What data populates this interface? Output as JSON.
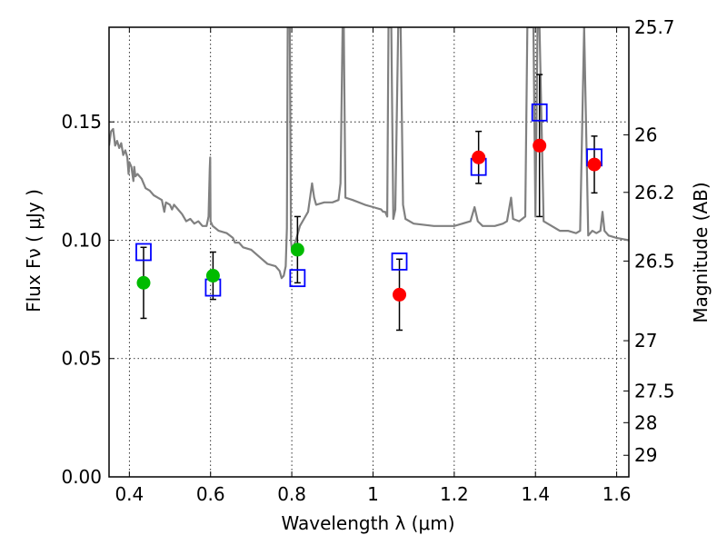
{
  "chart_data": {
    "type": "scatter",
    "title": "",
    "xlabel": "Wavelength  λ (μm)",
    "ylabel": "Flux  Fν  ( μJy )",
    "y2label": "Magnitude (AB)",
    "xlim": [
      0.35,
      1.63
    ],
    "ylim": [
      0.0,
      0.19
    ],
    "grid": true,
    "x_ticks": [
      {
        "value": 0.4,
        "label": "0.4"
      },
      {
        "value": 0.6,
        "label": "0.6"
      },
      {
        "value": 0.8,
        "label": "0.8"
      },
      {
        "value": 1.0,
        "label": "1"
      },
      {
        "value": 1.2,
        "label": "1.2"
      },
      {
        "value": 1.4,
        "label": "1.4"
      },
      {
        "value": 1.6,
        "label": "1.6"
      }
    ],
    "y_ticks": [
      {
        "value": 0.0,
        "label": "0.00"
      },
      {
        "value": 0.05,
        "label": "0.05"
      },
      {
        "value": 0.1,
        "label": "0.10"
      },
      {
        "value": 0.15,
        "label": "0.15"
      }
    ],
    "y2_ticks": [
      {
        "value": 25.7,
        "label": "25.7"
      },
      {
        "value": 26.0,
        "label": "26"
      },
      {
        "value": 26.2,
        "label": "26.2"
      },
      {
        "value": 26.5,
        "label": "26.5"
      },
      {
        "value": 27.0,
        "label": "27"
      },
      {
        "value": 27.5,
        "label": "27.5"
      },
      {
        "value": 28.0,
        "label": "28"
      },
      {
        "value": 29.0,
        "label": "29"
      }
    ],
    "series": [
      {
        "kind": "observed_optical",
        "color": "#00bb00",
        "marker": "circle",
        "points": [
          {
            "x": 0.435,
            "y": 0.082,
            "yerr": 0.015
          },
          {
            "x": 0.606,
            "y": 0.085,
            "yerr": 0.01
          },
          {
            "x": 0.814,
            "y": 0.096,
            "yerr": 0.014
          }
        ]
      },
      {
        "kind": "observed_nir",
        "color": "#ff0000",
        "marker": "circle",
        "points": [
          {
            "x": 1.065,
            "y": 0.077,
            "yerr": 0.015
          },
          {
            "x": 1.26,
            "y": 0.135,
            "yerr": 0.011
          },
          {
            "x": 1.41,
            "y": 0.14,
            "yerr": 0.03
          },
          {
            "x": 1.545,
            "y": 0.132,
            "yerr": 0.012
          }
        ]
      },
      {
        "kind": "model_photometry",
        "color": "#0000ff",
        "marker": "open-square",
        "points": [
          {
            "x": 0.435,
            "y": 0.095
          },
          {
            "x": 0.606,
            "y": 0.08
          },
          {
            "x": 0.814,
            "y": 0.084
          },
          {
            "x": 1.065,
            "y": 0.091
          },
          {
            "x": 1.26,
            "y": 0.131
          },
          {
            "x": 1.41,
            "y": 0.154
          },
          {
            "x": 1.545,
            "y": 0.135
          }
        ]
      },
      {
        "kind": "model_sed",
        "color": "#808080",
        "marker": "line",
        "points": [
          [
            0.35,
            0.14
          ],
          [
            0.355,
            0.146
          ],
          [
            0.36,
            0.147
          ],
          [
            0.365,
            0.14
          ],
          [
            0.37,
            0.142
          ],
          [
            0.375,
            0.139
          ],
          [
            0.38,
            0.141
          ],
          [
            0.385,
            0.136
          ],
          [
            0.39,
            0.138
          ],
          [
            0.395,
            0.135
          ],
          [
            0.398,
            0.128
          ],
          [
            0.4,
            0.133
          ],
          [
            0.405,
            0.131
          ],
          [
            0.41,
            0.125
          ],
          [
            0.412,
            0.131
          ],
          [
            0.415,
            0.127
          ],
          [
            0.42,
            0.128
          ],
          [
            0.425,
            0.127
          ],
          [
            0.43,
            0.126
          ],
          [
            0.435,
            0.124
          ],
          [
            0.44,
            0.122
          ],
          [
            0.45,
            0.121
          ],
          [
            0.46,
            0.119
          ],
          [
            0.47,
            0.118
          ],
          [
            0.48,
            0.117
          ],
          [
            0.486,
            0.112
          ],
          [
            0.49,
            0.116
          ],
          [
            0.5,
            0.115
          ],
          [
            0.505,
            0.113
          ],
          [
            0.51,
            0.115
          ],
          [
            0.52,
            0.113
          ],
          [
            0.53,
            0.111
          ],
          [
            0.54,
            0.108
          ],
          [
            0.55,
            0.109
          ],
          [
            0.56,
            0.107
          ],
          [
            0.57,
            0.108
          ],
          [
            0.58,
            0.106
          ],
          [
            0.59,
            0.106
          ],
          [
            0.595,
            0.11
          ],
          [
            0.598,
            0.13
          ],
          [
            0.599,
            0.135
          ],
          [
            0.6,
            0.108
          ],
          [
            0.605,
            0.106
          ],
          [
            0.62,
            0.104
          ],
          [
            0.64,
            0.103
          ],
          [
            0.655,
            0.101
          ],
          [
            0.66,
            0.099
          ],
          [
            0.67,
            0.099
          ],
          [
            0.68,
            0.097
          ],
          [
            0.7,
            0.096
          ],
          [
            0.72,
            0.093
          ],
          [
            0.74,
            0.09
          ],
          [
            0.76,
            0.089
          ],
          [
            0.77,
            0.087
          ],
          [
            0.775,
            0.084
          ],
          [
            0.78,
            0.085
          ],
          [
            0.785,
            0.089
          ],
          [
            0.788,
            0.105
          ],
          [
            0.79,
            0.19
          ],
          [
            0.795,
            0.19
          ],
          [
            0.798,
            0.1
          ],
          [
            0.8,
            0.096
          ],
          [
            0.81,
            0.1
          ],
          [
            0.82,
            0.106
          ],
          [
            0.83,
            0.109
          ],
          [
            0.84,
            0.112
          ],
          [
            0.845,
            0.118
          ],
          [
            0.85,
            0.124
          ],
          [
            0.855,
            0.118
          ],
          [
            0.86,
            0.115
          ],
          [
            0.88,
            0.116
          ],
          [
            0.9,
            0.116
          ],
          [
            0.915,
            0.117
          ],
          [
            0.92,
            0.124
          ],
          [
            0.925,
            0.19
          ],
          [
            0.928,
            0.19
          ],
          [
            0.932,
            0.118
          ],
          [
            0.95,
            0.117
          ],
          [
            0.98,
            0.115
          ],
          [
            1.0,
            0.114
          ],
          [
            1.02,
            0.113
          ],
          [
            1.025,
            0.112
          ],
          [
            1.03,
            0.112
          ],
          [
            1.035,
            0.11
          ],
          [
            1.038,
            0.19
          ],
          [
            1.045,
            0.19
          ],
          [
            1.05,
            0.109
          ],
          [
            1.055,
            0.113
          ],
          [
            1.062,
            0.19
          ],
          [
            1.068,
            0.19
          ],
          [
            1.074,
            0.115
          ],
          [
            1.08,
            0.109
          ],
          [
            1.1,
            0.107
          ],
          [
            1.15,
            0.106
          ],
          [
            1.2,
            0.106
          ],
          [
            1.24,
            0.108
          ],
          [
            1.25,
            0.114
          ],
          [
            1.258,
            0.108
          ],
          [
            1.27,
            0.106
          ],
          [
            1.3,
            0.106
          ],
          [
            1.32,
            0.107
          ],
          [
            1.33,
            0.108
          ],
          [
            1.34,
            0.118
          ],
          [
            1.345,
            0.109
          ],
          [
            1.36,
            0.108
          ],
          [
            1.375,
            0.11
          ],
          [
            1.38,
            0.19
          ],
          [
            1.395,
            0.19
          ],
          [
            1.4,
            0.11
          ],
          [
            1.405,
            0.19
          ],
          [
            1.41,
            0.19
          ],
          [
            1.42,
            0.108
          ],
          [
            1.44,
            0.106
          ],
          [
            1.46,
            0.104
          ],
          [
            1.48,
            0.104
          ],
          [
            1.5,
            0.103
          ],
          [
            1.51,
            0.104
          ],
          [
            1.52,
            0.19
          ],
          [
            1.53,
            0.102
          ],
          [
            1.54,
            0.104
          ],
          [
            1.55,
            0.103
          ],
          [
            1.56,
            0.104
          ],
          [
            1.565,
            0.112
          ],
          [
            1.57,
            0.104
          ],
          [
            1.58,
            0.102
          ],
          [
            1.6,
            0.101
          ],
          [
            1.63,
            0.1
          ]
        ]
      }
    ]
  }
}
